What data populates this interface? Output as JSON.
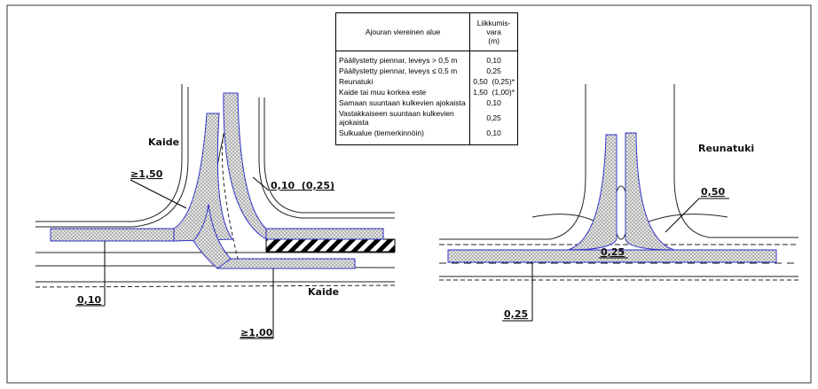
{
  "table": {
    "header": {
      "label": "Ajouran viereinen alue",
      "value_lines": [
        "Liikkumis-",
        "vara",
        "(m)"
      ]
    },
    "rows": [
      [
        "Päällystetty piennar, leveys > 0,5 m",
        "0,10"
      ],
      [
        "Päällystetty piennar, leveys ≤ 0,5 m",
        "0,25"
      ],
      [
        "Reunatuki",
        "0,50  (0,25)*"
      ],
      [
        "Kaide tai muu korkea este",
        "1,50  (1,00)*"
      ],
      [
        "Samaan suuntaan kulkevien ajokaista",
        "0,10"
      ],
      [
        "Vastakkaiseen suuntaan kulkevien ajokaista",
        "0,25"
      ],
      [
        "Sulkualue (tiemerkinnöin)",
        "0,10"
      ]
    ]
  },
  "left_diagram": {
    "labels": [
      "Kaide",
      "≥1,50",
      "0,10  (0,25)",
      "0,10",
      "Kaide",
      "≥1,00"
    ]
  },
  "right_diagram": {
    "labels": [
      "Reunatuki",
      "0,50",
      "0,25",
      "0,25"
    ]
  }
}
